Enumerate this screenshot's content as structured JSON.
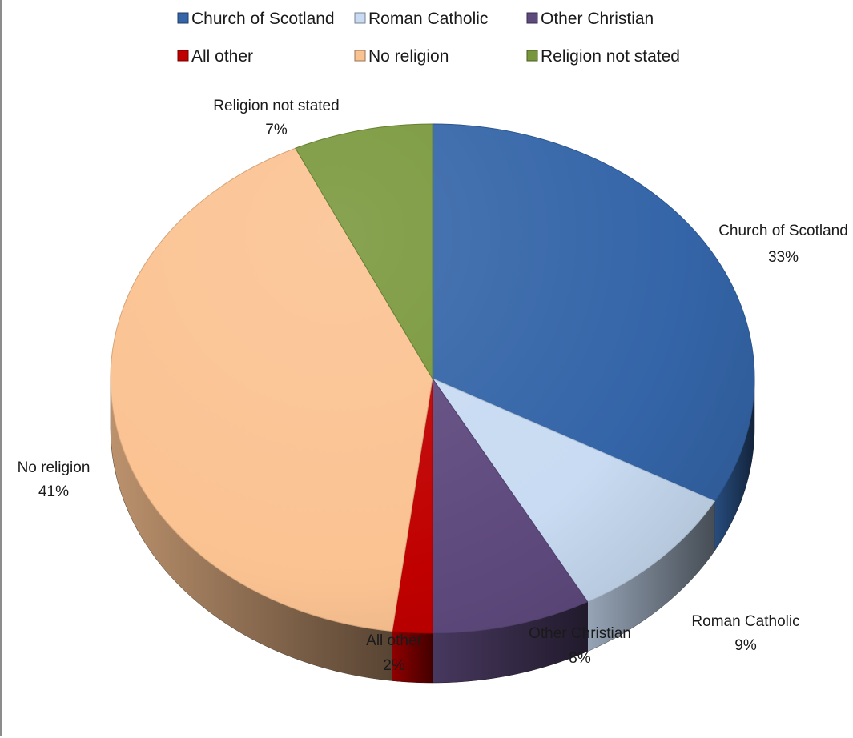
{
  "chart_data": {
    "type": "pie",
    "title": "",
    "legend_position": "top",
    "slices": [
      {
        "label": "Church of Scotland",
        "value": 33,
        "pct_label": "33%",
        "color": "#3465a8"
      },
      {
        "label": "Roman Catholic",
        "value": 9,
        "pct_label": "9%",
        "color": "#c8dbf2"
      },
      {
        "label": "Other Christian",
        "value": 8,
        "pct_label": "8%",
        "color": "#5f4a7e"
      },
      {
        "label": "All other",
        "value": 2,
        "pct_label": "2%",
        "color": "#c00000"
      },
      {
        "label": "No religion",
        "value": 41,
        "pct_label": "41%",
        "color": "#fbc291"
      },
      {
        "label": "Religion not stated",
        "value": 7,
        "pct_label": "7%",
        "color": "#78973a"
      }
    ]
  }
}
